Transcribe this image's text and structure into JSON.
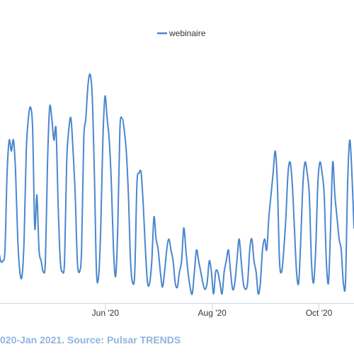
{
  "chart_data": {
    "type": "line",
    "legend": {
      "position": "top-center"
    },
    "grid": false,
    "ylim": [
      0,
      100
    ],
    "x_ticks": [
      {
        "label": "Jun '20",
        "date": "2020-06-01"
      },
      {
        "label": "Aug '20",
        "date": "2020-08-01"
      },
      {
        "label": "Oct '20",
        "date": "2020-10-01"
      }
    ],
    "caption": "020-Jan 2021. Source: Pulsar TRENDS",
    "series": [
      {
        "name": "webinaire",
        "color": "#4a86cf",
        "x_range": [
          "2020-04-01",
          "2020-10-21"
        ],
        "values": [
          20,
          15,
          15,
          20,
          55,
          70,
          65,
          70,
          55,
          25,
          10,
          8,
          25,
          65,
          80,
          85,
          75,
          30,
          45,
          20,
          15,
          10,
          15,
          60,
          85,
          80,
          70,
          75,
          40,
          15,
          10,
          15,
          60,
          75,
          80,
          65,
          45,
          15,
          10,
          20,
          70,
          80,
          95,
          100,
          90,
          55,
          10,
          8,
          30,
          70,
          90,
          80,
          70,
          50,
          20,
          8,
          30,
          75,
          80,
          75,
          65,
          45,
          15,
          5,
          10,
          50,
          55,
          55,
          40,
          20,
          5,
          5,
          15,
          35,
          25,
          20,
          10,
          3,
          10,
          20,
          25,
          20,
          15,
          5,
          3,
          10,
          15,
          30,
          20,
          10,
          3,
          0,
          10,
          20,
          15,
          10,
          5,
          2,
          5,
          15,
          10,
          0,
          10,
          10,
          5,
          0,
          10,
          15,
          20,
          10,
          2,
          5,
          15,
          25,
          15,
          5,
          2,
          5,
          20,
          25,
          15,
          10,
          0,
          5,
          20,
          25,
          20,
          35,
          45,
          55,
          65,
          50,
          15,
          10,
          20,
          35,
          55,
          60,
          50,
          30,
          10,
          5,
          25,
          50,
          60,
          55,
          45,
          15,
          5,
          20,
          50,
          60,
          55,
          45,
          15,
          5,
          30,
          60,
          45,
          35,
          25,
          20,
          5,
          5,
          50,
          70,
          55,
          30
        ]
      }
    ]
  }
}
